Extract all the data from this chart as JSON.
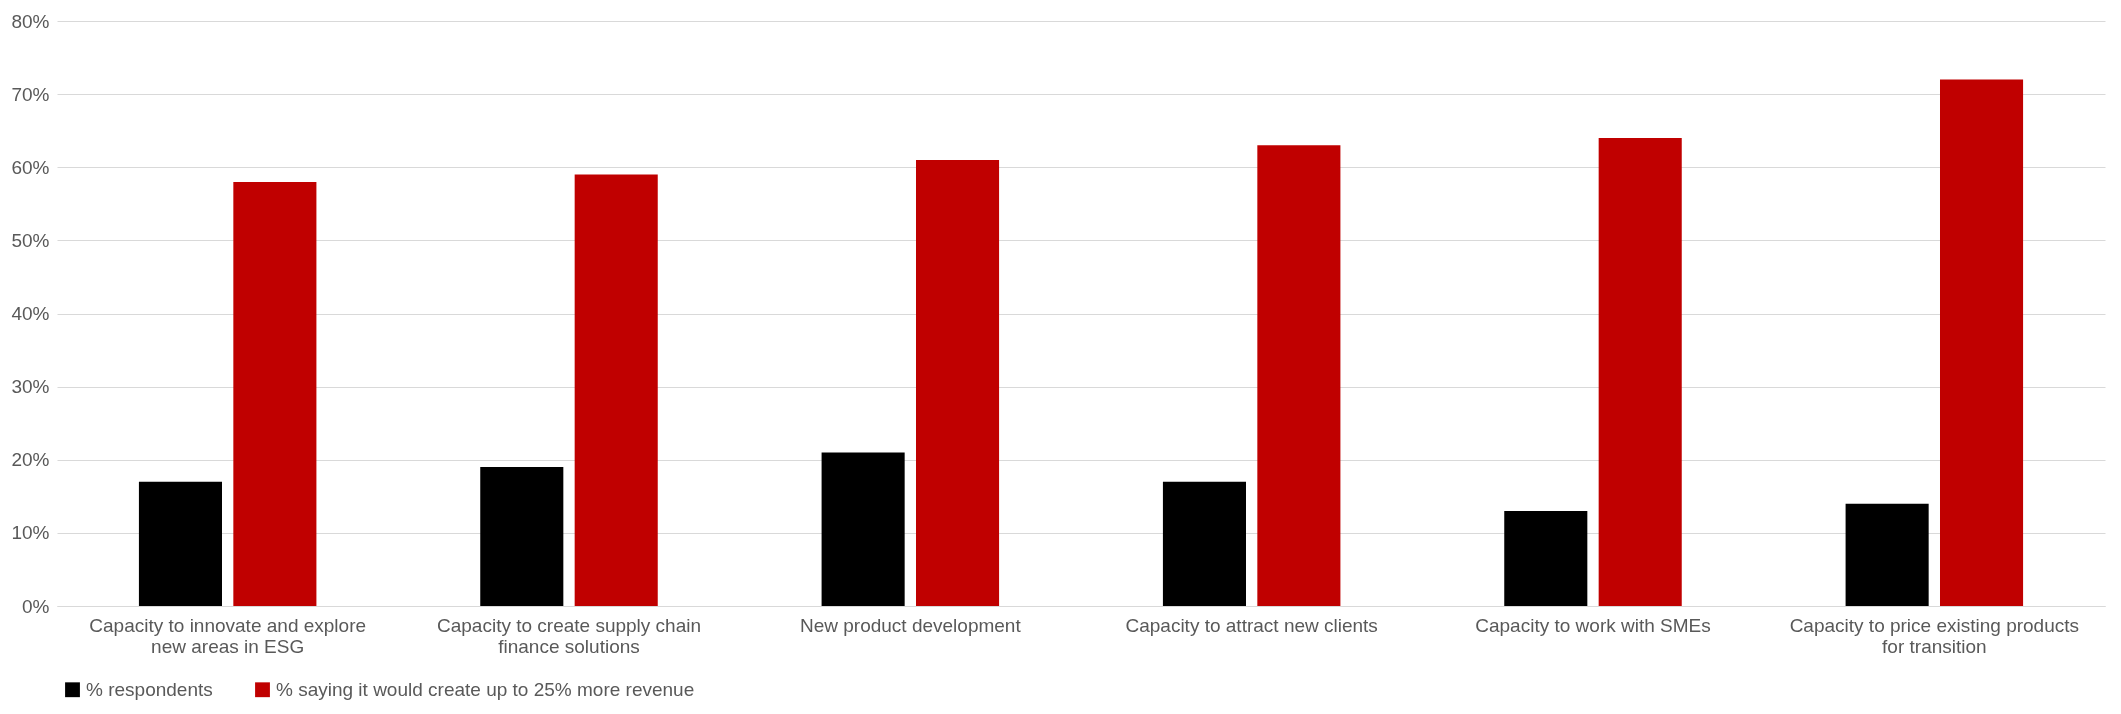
{
  "chart_data": {
    "type": "bar",
    "categories": [
      "Capacity to innovate and explore new areas in ESG",
      "Capacity to create supply chain finance solutions",
      "New product development",
      "Capacity to attract new clients",
      "Capacity to work with SMEs",
      "Capacity to price existing products for transition"
    ],
    "series": [
      {
        "name": "% respondents",
        "color": "#000000",
        "values": [
          17,
          19,
          21,
          17,
          13,
          14
        ]
      },
      {
        "name": "% saying it would create up to 25% more revenue",
        "color": "#c00000",
        "values": [
          58,
          59,
          61,
          63,
          64,
          72
        ]
      }
    ],
    "ylim": [
      0,
      80
    ],
    "yticks": [
      {
        "value": 0,
        "label": "0%"
      },
      {
        "value": 10,
        "label": "10%"
      },
      {
        "value": 20,
        "label": "20%"
      },
      {
        "value": 30,
        "label": "30%"
      },
      {
        "value": 40,
        "label": "40%"
      },
      {
        "value": 50,
        "label": "50%"
      },
      {
        "value": 60,
        "label": "60%"
      },
      {
        "value": 70,
        "label": "70%"
      },
      {
        "value": 80,
        "label": "80%"
      }
    ],
    "grid": "y",
    "legend": "bottom"
  }
}
